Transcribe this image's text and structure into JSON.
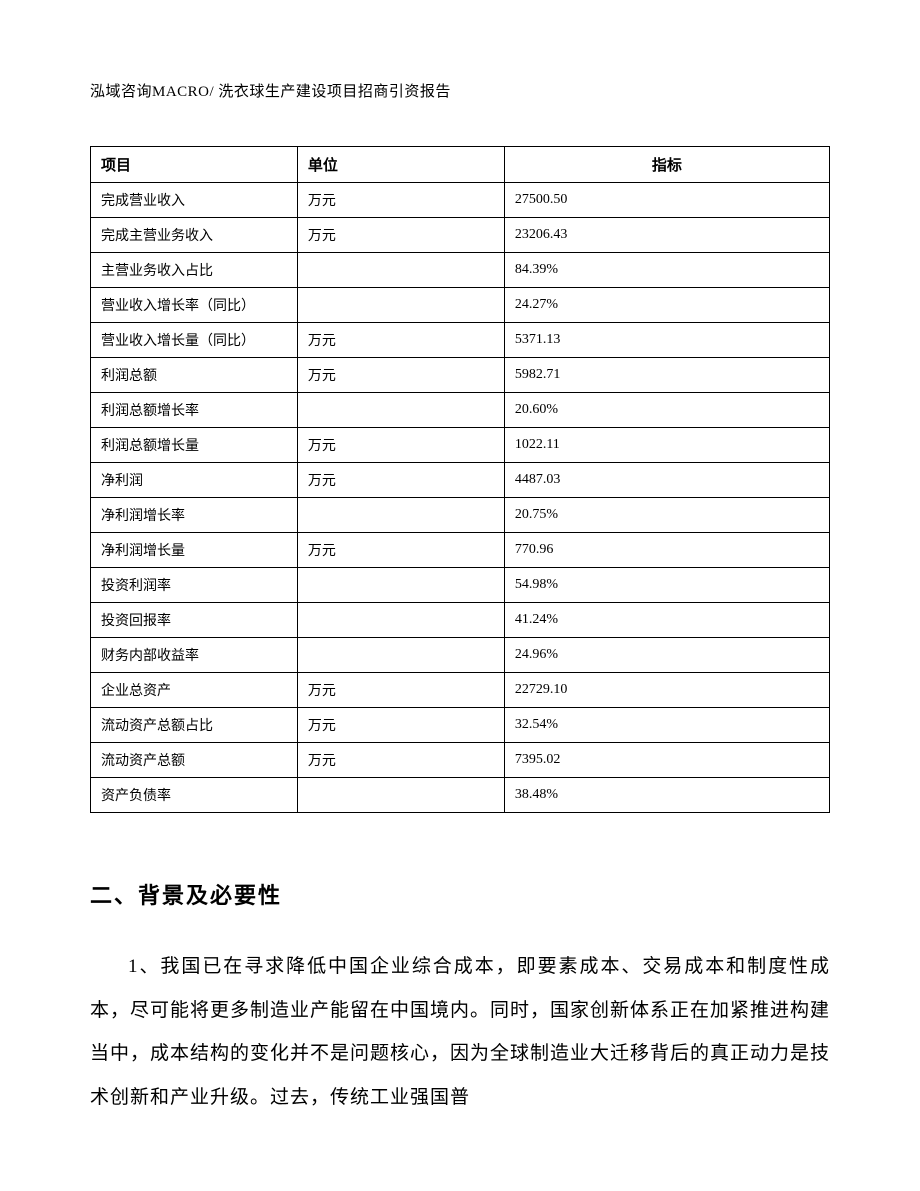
{
  "header": "泓域咨询MACRO/ 洗衣球生产建设项目招商引资报告",
  "table": {
    "columns": [
      "项目",
      "单位",
      "指标"
    ],
    "rows": [
      [
        "完成营业收入",
        "万元",
        "27500.50"
      ],
      [
        "完成主营业务收入",
        "万元",
        "23206.43"
      ],
      [
        "主营业务收入占比",
        "",
        "84.39%"
      ],
      [
        "营业收入增长率（同比）",
        "",
        "24.27%"
      ],
      [
        "营业收入增长量（同比）",
        "万元",
        "5371.13"
      ],
      [
        "利润总额",
        "万元",
        "5982.71"
      ],
      [
        "利润总额增长率",
        "",
        "20.60%"
      ],
      [
        "利润总额增长量",
        "万元",
        "1022.11"
      ],
      [
        "净利润",
        "万元",
        "4487.03"
      ],
      [
        "净利润增长率",
        "",
        "20.75%"
      ],
      [
        "净利润增长量",
        "万元",
        "770.96"
      ],
      [
        "投资利润率",
        "",
        "54.98%"
      ],
      [
        "投资回报率",
        "",
        "41.24%"
      ],
      [
        "财务内部收益率",
        "",
        "24.96%"
      ],
      [
        "企业总资产",
        "万元",
        "22729.10"
      ],
      [
        "流动资产总额占比",
        "万元",
        "32.54%"
      ],
      [
        "流动资产总额",
        "万元",
        "7395.02"
      ],
      [
        "资产负债率",
        "",
        "38.48%"
      ]
    ]
  },
  "section": {
    "heading": "二、背景及必要性",
    "paragraph": "1、我国已在寻求降低中国企业综合成本，即要素成本、交易成本和制度性成本，尽可能将更多制造业产能留在中国境内。同时，国家创新体系正在加紧推进构建当中，成本结构的变化并不是问题核心，因为全球制造业大迁移背后的真正动力是技术创新和产业升级。过去，传统工业强国普"
  }
}
